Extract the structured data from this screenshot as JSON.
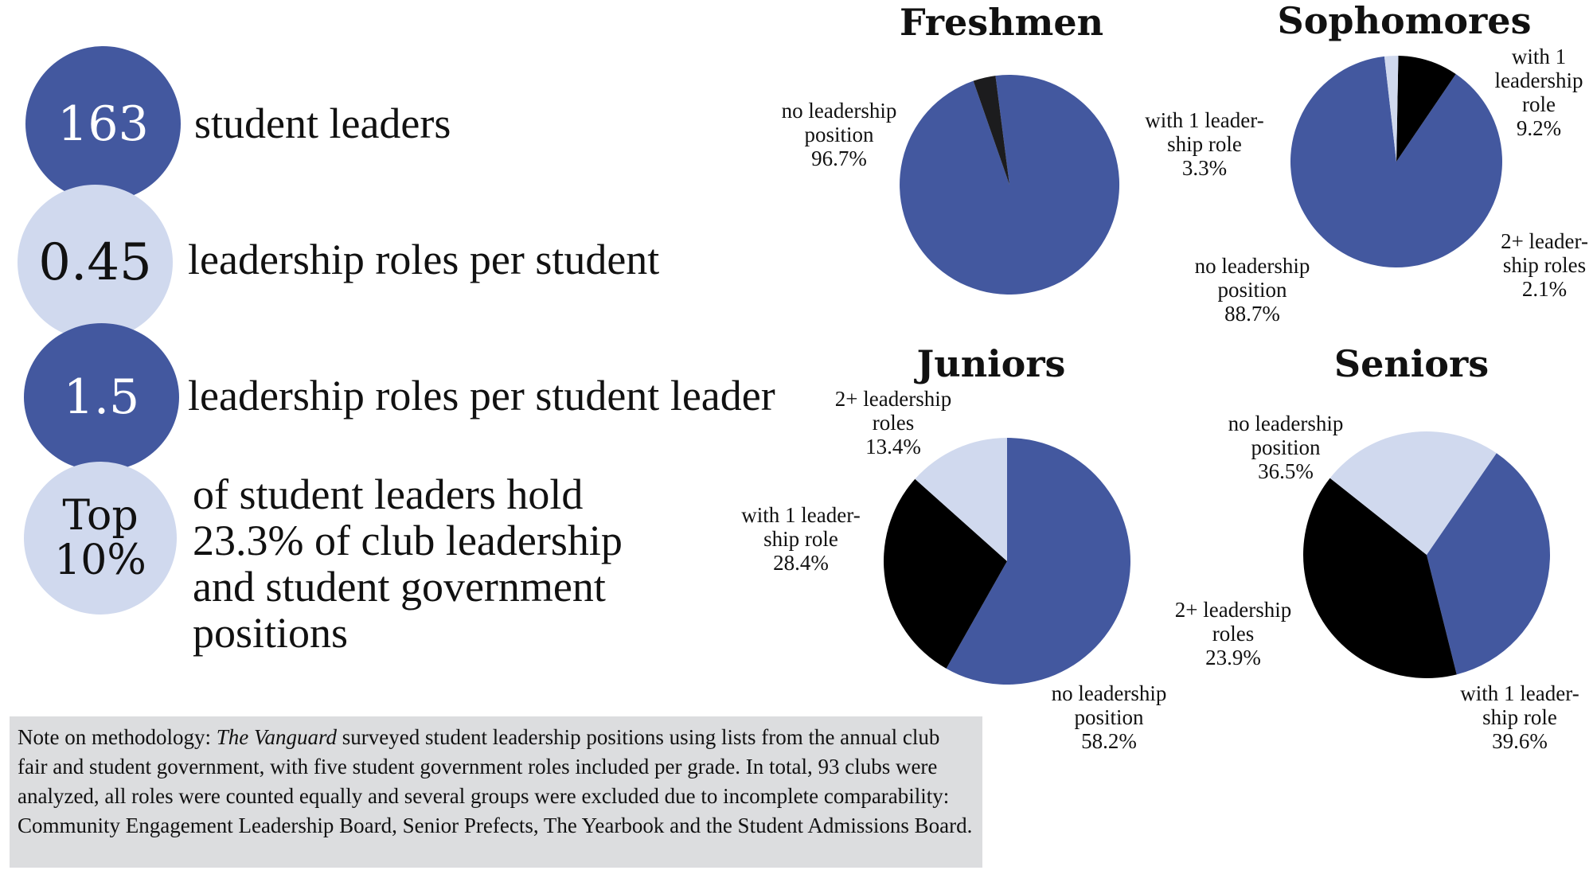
{
  "stats": [
    {
      "value_lines": [
        "163"
      ],
      "text_lines": [
        "student leaders"
      ],
      "tone": "dark"
    },
    {
      "value_lines": [
        "0.45"
      ],
      "text_lines": [
        "leadership roles per student"
      ],
      "tone": "light"
    },
    {
      "value_lines": [
        "1.5"
      ],
      "text_lines": [
        "leadership roles per student leader"
      ],
      "tone": "dark"
    },
    {
      "value_lines": [
        "Top",
        "10%"
      ],
      "text_lines": [
        "of student leaders hold",
        "23.3% of club leadership",
        "and student government",
        "positions"
      ],
      "tone": "light"
    }
  ],
  "note": {
    "prefix": "Note on methodology: ",
    "publication": "The Vanguard",
    "body": " surveyed student leadership positions using lists from the annual club fair and student government, with five student government roles included per grade. In total, 93 clubs were analyzed, all roles were counted equally and several groups were excluded due to incomplete comparability: Community Engagement Leadership Board, Senior Prefects, The Yearbook and the Student Admissions Board."
  },
  "colors": {
    "no_leadership": "#43589f",
    "one_role": "#000000",
    "two_plus": "#d0d9ee",
    "circle_dark": "#43589f",
    "circle_light": "#d0d9ee",
    "note_bg": "#dcdddf"
  },
  "chart_data": [
    {
      "type": "pie",
      "title": "Freshmen",
      "slices": [
        {
          "label_lines": [
            "no leadership",
            "position"
          ],
          "value": 96.7,
          "value_text": "96.7%",
          "color": "#43589f"
        },
        {
          "label_lines": [
            "with 1 leader-",
            "ship role"
          ],
          "value": 3.3,
          "value_text": "3.3%",
          "color": "#1c1c1e"
        }
      ]
    },
    {
      "type": "pie",
      "title": "Sophomores",
      "slices": [
        {
          "label_lines": [
            "no leadership",
            "position"
          ],
          "value": 88.7,
          "value_text": "88.7%",
          "color": "#43589f"
        },
        {
          "label_lines": [
            "with 1",
            "leadership",
            "role"
          ],
          "value": 9.2,
          "value_text": "9.2%",
          "color": "#000000"
        },
        {
          "label_lines": [
            "2+ leader-",
            "ship roles"
          ],
          "value": 2.1,
          "value_text": "2.1%",
          "color": "#d0d9ee"
        }
      ]
    },
    {
      "type": "pie",
      "title": "Juniors",
      "slices": [
        {
          "label_lines": [
            "no leadership",
            "position"
          ],
          "value": 58.2,
          "value_text": "58.2%",
          "color": "#43589f"
        },
        {
          "label_lines": [
            "with 1 leader-",
            "ship role"
          ],
          "value": 28.4,
          "value_text": "28.4%",
          "color": "#000000"
        },
        {
          "label_lines": [
            "2+ leadership",
            "roles"
          ],
          "value": 13.4,
          "value_text": "13.4%",
          "color": "#d0d9ee"
        }
      ]
    },
    {
      "type": "pie",
      "title": "Seniors",
      "slices": [
        {
          "label_lines": [
            "no leadership",
            "position"
          ],
          "value": 36.5,
          "value_text": "36.5%",
          "color": "#43589f"
        },
        {
          "label_lines": [
            "with 1 leader-",
            "ship role"
          ],
          "value": 39.6,
          "value_text": "39.6%",
          "color": "#000000"
        },
        {
          "label_lines": [
            "2+ leadership",
            "roles"
          ],
          "value": 23.9,
          "value_text": "23.9%",
          "color": "#d0d9ee"
        }
      ]
    }
  ]
}
